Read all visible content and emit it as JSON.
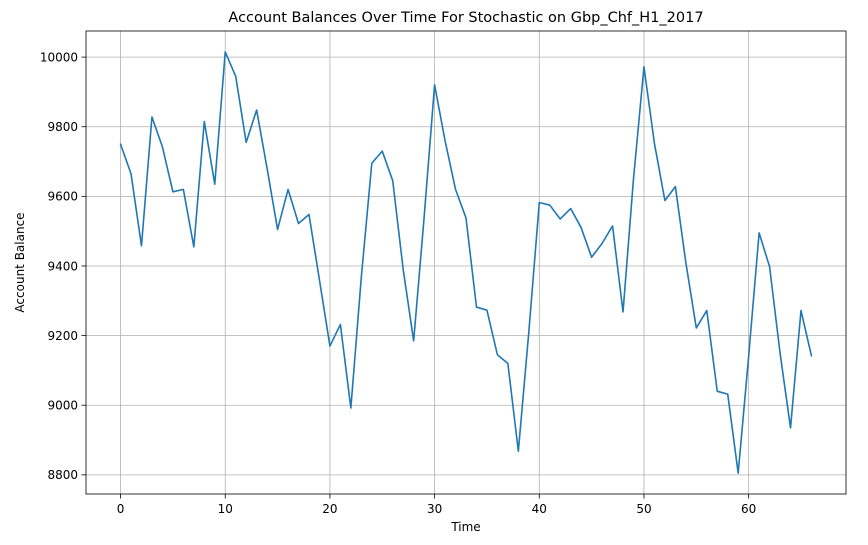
{
  "colors": {
    "line": "#1f77b4",
    "grid": "#b0b0b0",
    "axis": "#000000",
    "background": "#ffffff"
  },
  "chart_data": {
    "type": "line",
    "title": "Account Balances Over Time For Stochastic on Gbp_Chf_H1_2017",
    "xlabel": "Time",
    "ylabel": "Account Balance",
    "xlim": [
      -3.3,
      69.3
    ],
    "ylim": [
      8745,
      10075
    ],
    "x_ticks": [
      0,
      10,
      20,
      30,
      40,
      50,
      60
    ],
    "y_ticks": [
      8800,
      9000,
      9200,
      9400,
      9600,
      9800,
      10000
    ],
    "grid": true,
    "legend": "none",
    "series": [
      {
        "x": [
          0,
          1,
          2,
          3,
          4,
          5,
          6,
          7,
          8,
          9,
          10,
          11,
          12,
          13,
          14,
          15,
          16,
          17,
          18,
          19,
          20,
          21,
          22,
          23,
          24,
          25,
          26,
          27,
          28,
          29,
          30,
          31,
          32,
          33,
          34,
          35,
          36,
          37,
          38,
          39,
          40,
          41,
          42,
          43,
          44,
          45,
          46,
          47,
          48,
          49,
          50,
          51,
          52,
          53,
          54,
          55,
          56,
          57,
          58,
          59,
          60,
          61,
          62,
          63,
          64,
          65,
          66
        ],
        "values": [
          9750,
          9665,
          9458,
          9828,
          9742,
          9613,
          9620,
          9455,
          9815,
          9635,
          10015,
          9945,
          9755,
          9848,
          9680,
          9505,
          9620,
          9522,
          9548,
          9360,
          9170,
          9232,
          8992,
          9368,
          9695,
          9730,
          9645,
          9390,
          9185,
          9540,
          9920,
          9760,
          9620,
          9538,
          9282,
          9273,
          9145,
          9120,
          8868,
          9210,
          9582,
          9575,
          9535,
          9565,
          9510,
          9425,
          9465,
          9515,
          9268,
          9650,
          9972,
          9752,
          9588,
          9628,
          9410,
          9222,
          9272,
          9040,
          9032,
          8805,
          9140,
          9495,
          9398,
          9150,
          8935,
          9272,
          9142
        ]
      }
    ]
  }
}
